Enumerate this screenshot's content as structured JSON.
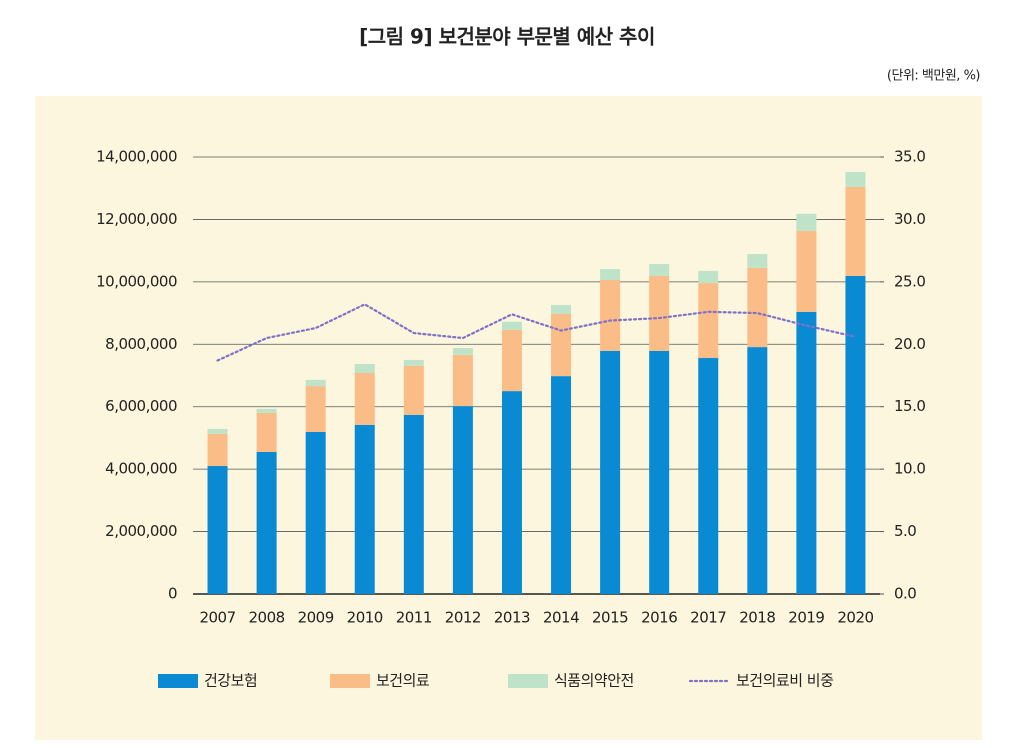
{
  "chart_data": {
    "type": "bar",
    "stacked": true,
    "title": "[그림 9] 보건분야 부문별 예산 추이",
    "unit_note": "(단위: 백만원, %)",
    "categories": [
      "2007",
      "2008",
      "2009",
      "2010",
      "2011",
      "2012",
      "2013",
      "2014",
      "2015",
      "2016",
      "2017",
      "2018",
      "2019",
      "2020"
    ],
    "series": [
      {
        "name": "건강보험",
        "color": "#0a8ad2",
        "values": [
          4100000,
          4550000,
          5190000,
          5420000,
          5740000,
          6020000,
          6500000,
          6980000,
          7790000,
          7790000,
          7560000,
          7910000,
          9040000,
          10190000
        ]
      },
      {
        "name": "보건의료",
        "color": "#fbbd88",
        "values": [
          1030000,
          1250000,
          1470000,
          1660000,
          1570000,
          1640000,
          1960000,
          1990000,
          2270000,
          2400000,
          2400000,
          2540000,
          2590000,
          2850000
        ]
      },
      {
        "name": "식품의약안전",
        "color": "#bfe3c8",
        "values": [
          160000,
          130000,
          200000,
          290000,
          190000,
          220000,
          260000,
          290000,
          350000,
          380000,
          390000,
          440000,
          550000,
          480000
        ]
      },
      {
        "name": "보건의료비 비중",
        "color": "#7d72c8",
        "axis": "y2",
        "values": [
          18.7,
          20.5,
          21.3,
          23.2,
          20.9,
          20.5,
          22.4,
          21.1,
          21.9,
          22.1,
          22.6,
          22.5,
          21.5,
          20.6
        ]
      }
    ],
    "ylim": [
      0,
      14000000
    ],
    "yticks": [
      0,
      {
        "value": 2000000,
        "label": "2,000,000"
      },
      {
        "value": 4000000,
        "label": "4,000,000"
      },
      {
        "value": 6000000,
        "label": "6,000,000"
      },
      {
        "value": 8000000,
        "label": "8,000,000"
      },
      {
        "value": 10000000,
        "label": "10,000,000"
      },
      {
        "value": 12000000,
        "label": "12,000,000"
      },
      {
        "value": 14000000,
        "label": "14,000,000"
      }
    ],
    "y2lim": [
      0,
      35
    ],
    "y2ticks": [
      {
        "value": 0,
        "label": "0.0"
      },
      {
        "value": 5,
        "label": "5.0"
      },
      {
        "value": 10,
        "label": "10.0"
      },
      {
        "value": 15,
        "label": "15.0"
      },
      {
        "value": 20,
        "label": "20.0"
      },
      {
        "value": 25,
        "label": "25.0"
      },
      {
        "value": 30,
        "label": "30.0"
      },
      {
        "value": 35,
        "label": "35.0"
      }
    ],
    "grid": true
  }
}
